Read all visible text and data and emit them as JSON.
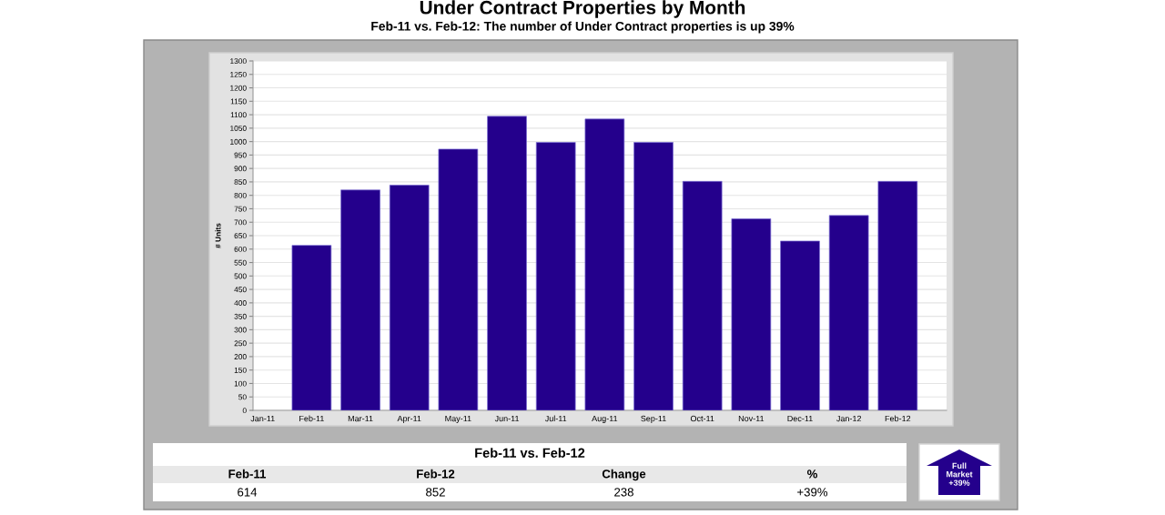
{
  "chart_data": [
    {
      "type": "bar",
      "title": "Under Contract Properties by Month",
      "subtitle": "Feb-11 vs. Feb-12: The number of Under Contract properties is up 39%",
      "ylabel": "# Units",
      "categories": [
        "Jan-11",
        "Feb-11",
        "Mar-11",
        "Apr-11",
        "May-11",
        "Jun-11",
        "Jul-11",
        "Aug-11",
        "Sep-11",
        "Oct-11",
        "Nov-11",
        "Dec-11",
        "Jan-12",
        "Feb-12"
      ],
      "values": [
        null,
        614,
        820,
        838,
        972,
        1094,
        997,
        1084,
        997,
        852,
        713,
        630,
        725,
        852
      ],
      "color": "#24008c",
      "ylim": [
        0,
        1300
      ],
      "yticks": [
        0,
        50,
        100,
        150,
        200,
        250,
        300,
        350,
        400,
        450,
        500,
        550,
        600,
        650,
        700,
        750,
        800,
        850,
        900,
        950,
        1000,
        1050,
        1100,
        1150,
        1200,
        1250,
        1300
      ],
      "grid": "y"
    },
    {
      "type": "other",
      "title": "Feb-11 vs. Feb-12",
      "categories": [
        "Feb-11",
        "Feb-12",
        "Change",
        "%"
      ],
      "value_labels": [
        "614",
        "852",
        "238",
        "+39%"
      ],
      "color": "#24008c",
      "annotations": [
        "Full\nMarket\n+39%"
      ]
    }
  ]
}
